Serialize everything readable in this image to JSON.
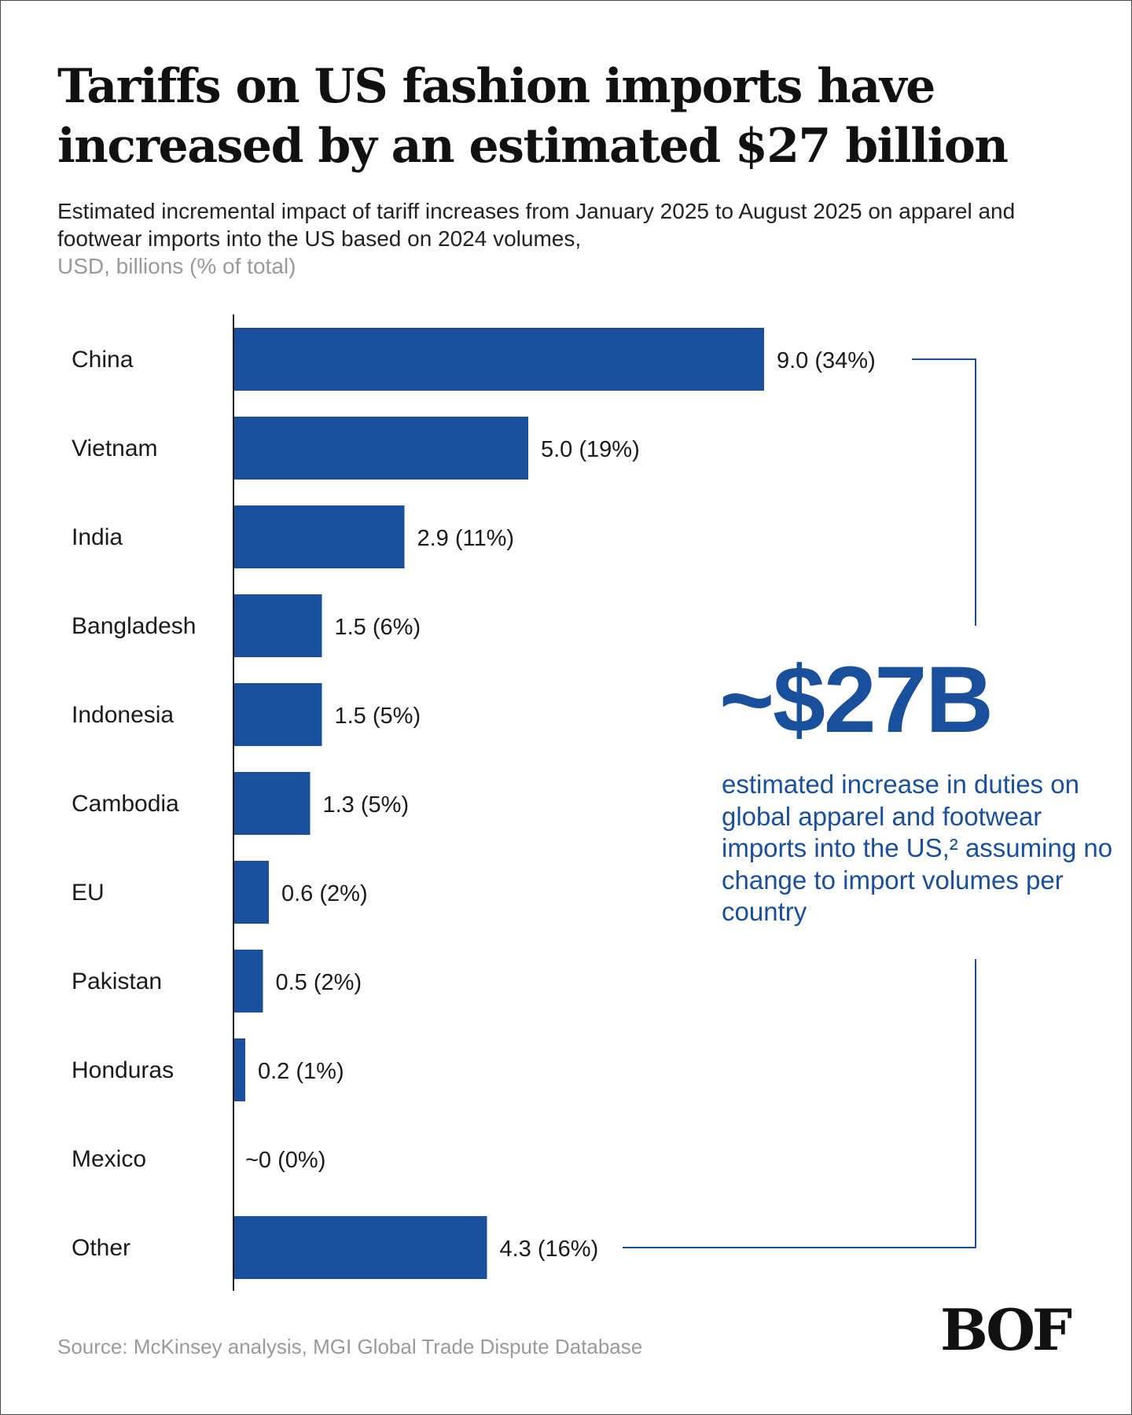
{
  "title": "Tariffs on US fashion imports have increased by an estimated $27 billion",
  "subtitle": "Estimated incremental impact of tariff increases from January 2025 to August 2025 on apparel and footwear imports into the US based on 2024 volumes,",
  "units": "USD, billions (% of total)",
  "callout": {
    "value": "~$27B",
    "text": "estimated increase in duties on global apparel and footwear imports into the US,² assuming no change to import volumes per country"
  },
  "source": "Source: McKinsey analysis, MGI Global Trade Dispute Database",
  "logo": "BOF",
  "colors": {
    "bar": "#1a4f9c",
    "callout": "#1a4f9c",
    "text": "#1a1a1a",
    "muted": "#9a9a9a"
  },
  "chart_data": {
    "type": "bar",
    "orientation": "horizontal",
    "categories": [
      "China",
      "Vietnam",
      "India",
      "Bangladesh",
      "Indonesia",
      "Cambodia",
      "EU",
      "Pakistan",
      "Honduras",
      "Mexico",
      "Other"
    ],
    "values": [
      9.0,
      5.0,
      2.9,
      1.5,
      1.5,
      1.3,
      0.6,
      0.5,
      0.2,
      0,
      4.3
    ],
    "data_labels": [
      "9.0 (34%)",
      "5.0 (19%)",
      "2.9 (11%)",
      "1.5 (6%)",
      "1.5 (5%)",
      "1.3 (5%)",
      "0.6 (2%)",
      "0.5 (2%)",
      "0.2 (1%)",
      "~0 (0%)",
      "4.3 (16%)"
    ],
    "xlim": [
      0,
      9.0
    ],
    "grid": false,
    "legend": "none"
  }
}
